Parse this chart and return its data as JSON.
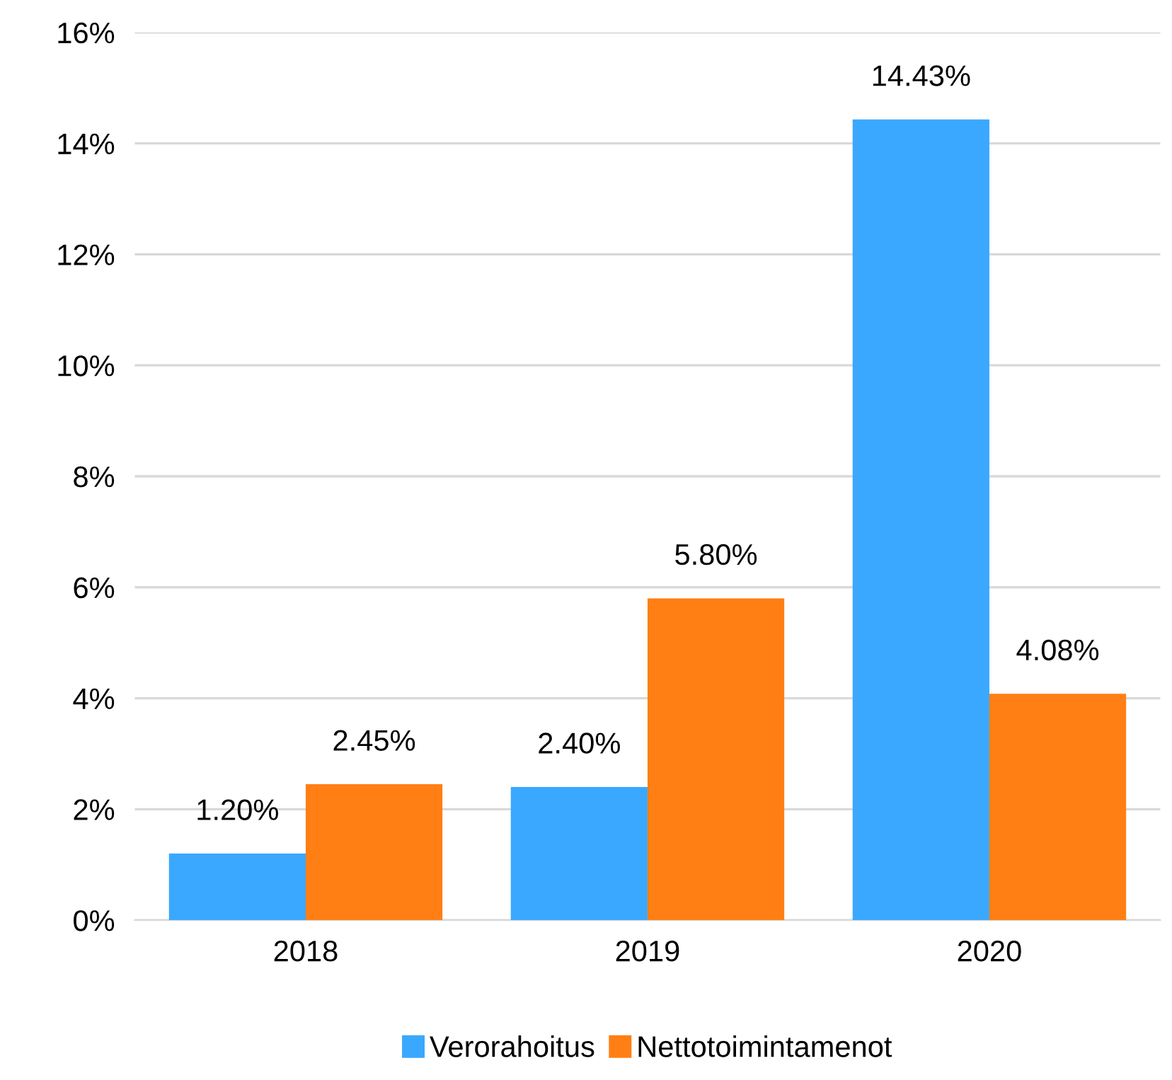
{
  "chart_data": {
    "type": "bar",
    "categories": [
      "2018",
      "2019",
      "2020"
    ],
    "series": [
      {
        "name": "Verorahoitus",
        "color": "#3aa8ff",
        "values": [
          1.2,
          2.4,
          14.43
        ],
        "value_labels": [
          "1.20%",
          "2.40%",
          "14.43%"
        ]
      },
      {
        "name": "Nettotoimintamenot",
        "color": "#ff7f14",
        "values": [
          2.45,
          5.8,
          4.08
        ],
        "value_labels": [
          "2.45%",
          "5.80%",
          "4.08%"
        ]
      }
    ],
    "ylim": [
      0,
      16
    ],
    "yticks": [
      {
        "value": 0,
        "label": "0%"
      },
      {
        "value": 2,
        "label": "2%"
      },
      {
        "value": 4,
        "label": "4%"
      },
      {
        "value": 6,
        "label": "6%"
      },
      {
        "value": 8,
        "label": "8%"
      },
      {
        "value": 10,
        "label": "10%"
      },
      {
        "value": 12,
        "label": "12%"
      },
      {
        "value": 14,
        "label": "14%"
      },
      {
        "value": 16,
        "label": "16%"
      }
    ],
    "grid": "y",
    "legend": "bottom"
  }
}
